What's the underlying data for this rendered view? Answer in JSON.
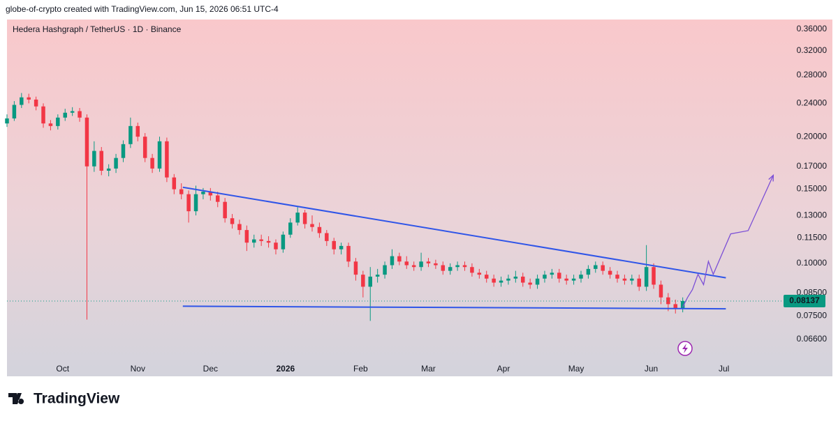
{
  "header": {
    "attribution": "globe-of-crypto created with TradingView.com, Jun 15, 2026 06:51 UTC-4"
  },
  "footer": {
    "brand": "TradingView"
  },
  "chart_data": {
    "type": "candlestick",
    "title": "Hedera Hashgraph / TetherUS · 1D · Binance",
    "log_scale": true,
    "grid": false,
    "up_color": "#089981",
    "down_color": "#f23645",
    "xlim": [
      0,
      318.6
    ],
    "xticks": [
      {
        "value": 23,
        "label": "Oct"
      },
      {
        "value": 54,
        "label": "Nov"
      },
      {
        "value": 84,
        "label": "Dec"
      },
      {
        "value": 115,
        "label": "2026"
      },
      {
        "value": 146,
        "label": "Feb"
      },
      {
        "value": 174,
        "label": "Mar"
      },
      {
        "value": 205,
        "label": "Apr"
      },
      {
        "value": 235,
        "label": "May"
      },
      {
        "value": 266,
        "label": "Jun"
      },
      {
        "value": 296,
        "label": "Jul"
      }
    ],
    "ylim": [
      0.0539,
      0.3797
    ],
    "yticks": [
      {
        "value": 0.36,
        "label": "0.36000"
      },
      {
        "value": 0.32,
        "label": "0.32000"
      },
      {
        "value": 0.28,
        "label": "0.28000"
      },
      {
        "value": 0.24,
        "label": "0.24000"
      },
      {
        "value": 0.2,
        "label": "0.20000"
      },
      {
        "value": 0.17,
        "label": "0.17000"
      },
      {
        "value": 0.15,
        "label": "0.15000"
      },
      {
        "value": 0.13,
        "label": "0.13000"
      },
      {
        "value": 0.115,
        "label": "0.11500"
      },
      {
        "value": 0.1,
        "label": "0.10000"
      },
      {
        "value": 0.085,
        "label": "0.08500"
      },
      {
        "value": 0.075,
        "label": "0.07500"
      },
      {
        "value": 0.066,
        "label": "0.06600"
      }
    ],
    "last_price": 0.08137,
    "x": [
      0,
      3,
      6,
      9,
      12,
      15,
      18,
      21,
      24,
      27,
      30,
      33,
      36,
      39,
      42,
      45,
      48,
      51,
      54,
      57,
      60,
      63,
      66,
      69,
      72,
      75,
      78,
      81,
      84,
      87,
      90,
      93,
      96,
      99,
      102,
      105,
      108,
      111,
      114,
      117,
      120,
      123,
      126,
      129,
      132,
      135,
      138,
      141,
      144,
      147,
      150,
      153,
      156,
      159,
      162,
      165,
      168,
      171,
      174,
      177,
      180,
      183,
      186,
      189,
      192,
      195,
      198,
      201,
      204,
      207,
      210,
      213,
      216,
      219,
      222,
      225,
      228,
      231,
      234,
      237,
      240,
      243,
      246,
      249,
      252,
      255,
      258,
      261,
      264,
      267,
      270,
      273,
      276,
      279
    ],
    "open": [
      0.215,
      0.221,
      0.238,
      0.248,
      0.245,
      0.236,
      0.215,
      0.212,
      0.222,
      0.228,
      0.23,
      0.222,
      0.17,
      0.185,
      0.166,
      0.168,
      0.178,
      0.192,
      0.212,
      0.2,
      0.178,
      0.168,
      0.195,
      0.16,
      0.15,
      0.146,
      0.133,
      0.146,
      0.148,
      0.145,
      0.14,
      0.128,
      0.124,
      0.12,
      0.112,
      0.114,
      0.113,
      0.112,
      0.108,
      0.117,
      0.125,
      0.132,
      0.124,
      0.122,
      0.118,
      0.113,
      0.108,
      0.11,
      0.101,
      0.094,
      0.088,
      0.093,
      0.094,
      0.099,
      0.104,
      0.101,
      0.099,
      0.098,
      0.101,
      0.1,
      0.099,
      0.096,
      0.098,
      0.099,
      0.098,
      0.095,
      0.094,
      0.092,
      0.09,
      0.091,
      0.092,
      0.093,
      0.09,
      0.089,
      0.092,
      0.094,
      0.095,
      0.092,
      0.091,
      0.092,
      0.094,
      0.097,
      0.099,
      0.096,
      0.094,
      0.092,
      0.091,
      0.092,
      0.088,
      0.098,
      0.089,
      0.083,
      0.08,
      0.078
    ],
    "high": [
      0.226,
      0.243,
      0.254,
      0.253,
      0.249,
      0.24,
      0.219,
      0.226,
      0.233,
      0.235,
      0.234,
      0.226,
      0.195,
      0.189,
      0.172,
      0.182,
      0.196,
      0.222,
      0.216,
      0.204,
      0.182,
      0.2,
      0.199,
      0.163,
      0.155,
      0.149,
      0.153,
      0.151,
      0.151,
      0.148,
      0.143,
      0.131,
      0.127,
      0.123,
      0.117,
      0.117,
      0.116,
      0.114,
      0.119,
      0.128,
      0.136,
      0.134,
      0.13,
      0.125,
      0.12,
      0.115,
      0.112,
      0.112,
      0.103,
      0.096,
      0.098,
      0.097,
      0.101,
      0.108,
      0.106,
      0.104,
      0.101,
      0.106,
      0.103,
      0.102,
      0.101,
      0.1,
      0.101,
      0.101,
      0.1,
      0.097,
      0.096,
      0.094,
      0.093,
      0.094,
      0.096,
      0.095,
      0.092,
      0.094,
      0.096,
      0.097,
      0.097,
      0.094,
      0.094,
      0.096,
      0.099,
      0.101,
      0.101,
      0.098,
      0.096,
      0.094,
      0.094,
      0.094,
      0.1105,
      0.1,
      0.091,
      0.085,
      0.082,
      0.083
    ],
    "low": [
      0.211,
      0.218,
      0.234,
      0.24,
      0.231,
      0.21,
      0.207,
      0.208,
      0.218,
      0.224,
      0.217,
      0.0735,
      0.165,
      0.162,
      0.161,
      0.164,
      0.174,
      0.188,
      0.195,
      0.174,
      0.164,
      0.165,
      0.156,
      0.146,
      0.142,
      0.125,
      0.13,
      0.142,
      0.141,
      0.136,
      0.125,
      0.121,
      0.117,
      0.107,
      0.109,
      0.11,
      0.109,
      0.105,
      0.106,
      0.115,
      0.123,
      0.121,
      0.119,
      0.115,
      0.11,
      0.105,
      0.105,
      0.098,
      0.091,
      0.083,
      0.073,
      0.09,
      0.092,
      0.097,
      0.099,
      0.097,
      0.096,
      0.096,
      0.098,
      0.097,
      0.094,
      0.094,
      0.096,
      0.096,
      0.093,
      0.092,
      0.09,
      0.088,
      0.088,
      0.089,
      0.09,
      0.088,
      0.087,
      0.087,
      0.09,
      0.092,
      0.09,
      0.089,
      0.089,
      0.09,
      0.092,
      0.095,
      0.094,
      0.092,
      0.09,
      0.089,
      0.089,
      0.086,
      0.086,
      0.087,
      0.08,
      0.077,
      0.076,
      0.0765
    ],
    "close": [
      0.221,
      0.238,
      0.248,
      0.245,
      0.236,
      0.215,
      0.212,
      0.222,
      0.228,
      0.23,
      0.222,
      0.17,
      0.185,
      0.166,
      0.168,
      0.178,
      0.192,
      0.212,
      0.2,
      0.178,
      0.168,
      0.195,
      0.16,
      0.15,
      0.146,
      0.133,
      0.146,
      0.148,
      0.145,
      0.14,
      0.128,
      0.124,
      0.12,
      0.112,
      0.114,
      0.113,
      0.112,
      0.108,
      0.117,
      0.125,
      0.132,
      0.124,
      0.122,
      0.118,
      0.113,
      0.108,
      0.11,
      0.101,
      0.094,
      0.088,
      0.093,
      0.094,
      0.099,
      0.104,
      0.101,
      0.099,
      0.098,
      0.101,
      0.1,
      0.099,
      0.096,
      0.098,
      0.099,
      0.098,
      0.095,
      0.094,
      0.092,
      0.09,
      0.091,
      0.092,
      0.093,
      0.09,
      0.089,
      0.092,
      0.094,
      0.095,
      0.092,
      0.091,
      0.092,
      0.094,
      0.097,
      0.099,
      0.096,
      0.094,
      0.092,
      0.091,
      0.092,
      0.088,
      0.098,
      0.089,
      0.083,
      0.08,
      0.078,
      0.08137
    ],
    "drawings": [
      {
        "color": "#2f55e8",
        "x": [
          72.6,
          296.8
        ],
        "y": [
          0.1516,
          0.0924
        ]
      },
      {
        "color": "#2f55e8",
        "x": [
          72.6,
          296.8
        ],
        "y": [
          0.0791,
          0.078
        ]
      },
      {
        "color": "#7b4fd6",
        "arrow": true,
        "x": [
          279,
          281,
          283,
          285.3,
          287.6,
          289.6,
          291.6,
          298.8,
          306,
          316.4
        ],
        "y": [
          0.0788,
          0.083,
          0.0866,
          0.0942,
          0.089,
          0.1011,
          0.0942,
          0.1175,
          0.1196,
          0.162
        ]
      }
    ]
  }
}
